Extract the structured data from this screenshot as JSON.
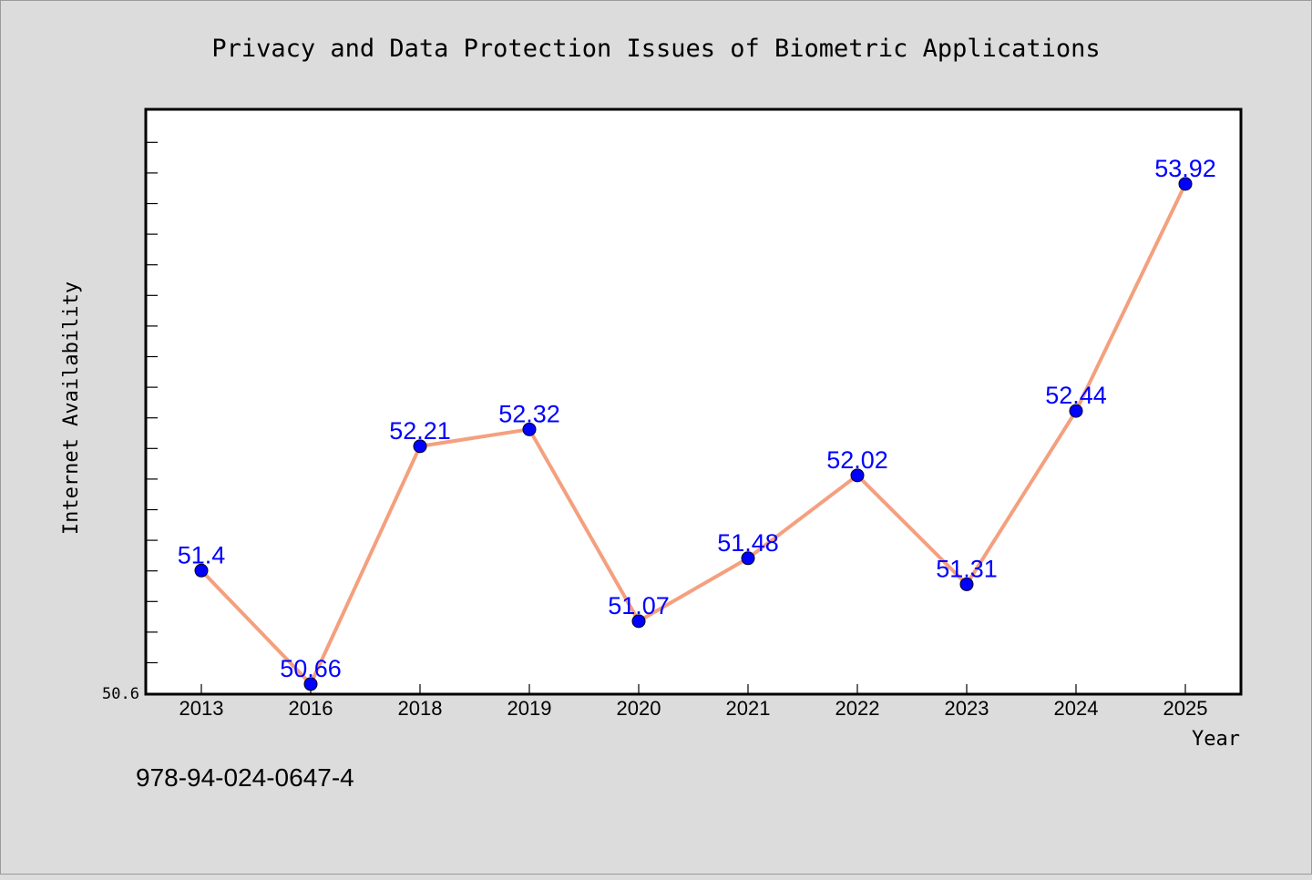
{
  "chart_data": {
    "type": "line",
    "title": "Privacy and Data Protection Issues of Biometric Applications",
    "xlabel": "Year",
    "ylabel": "Internet Availability",
    "categories": [
      "2013",
      "2016",
      "2018",
      "2019",
      "2020",
      "2021",
      "2022",
      "2023",
      "2024",
      "2025"
    ],
    "series": [
      {
        "values": [
          51.4,
          50.66,
          52.21,
          52.32,
          51.07,
          51.48,
          52.02,
          51.31,
          52.44,
          53.92
        ]
      }
    ],
    "data_labels": [
      "51.4",
      "50.66",
      "52.21",
      "52.32",
      "51.07",
      "51.48",
      "52.02",
      "51.31",
      "52.44",
      "53.92"
    ],
    "ylim": [
      50.6,
      54.4
    ],
    "ytick_labels": [
      "50.6"
    ],
    "grid": false,
    "line_color": "#f4a07e",
    "marker_color": "#0000ff",
    "label_color": "#0000ff",
    "background_color": "#dcdcdc",
    "plot_background_color": "#ffffff"
  },
  "footer": {
    "isbn": "978-94-024-0647-4"
  }
}
